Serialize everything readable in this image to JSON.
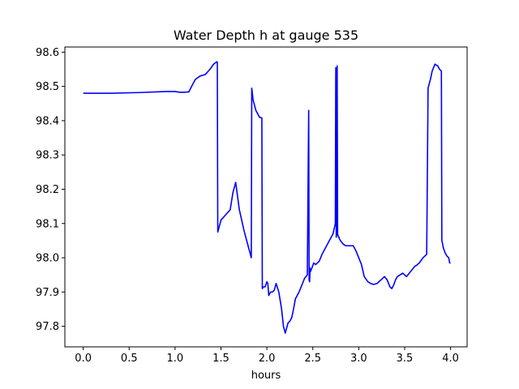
{
  "chart_data": {
    "type": "line",
    "title": "Water Depth h at gauge 535",
    "xlabel": "hours",
    "ylabel": "",
    "xlim": [
      -0.2,
      4.18
    ],
    "ylim": [
      97.74,
      98.615
    ],
    "xticks": [
      0.0,
      0.5,
      1.0,
      1.5,
      2.0,
      2.5,
      3.0,
      3.5,
      4.0
    ],
    "xtick_labels": [
      "0.0",
      "0.5",
      "1.0",
      "1.5",
      "2.0",
      "2.5",
      "3.0",
      "3.5",
      "4.0"
    ],
    "yticks": [
      97.8,
      97.9,
      98.0,
      98.1,
      98.2,
      98.3,
      98.4,
      98.5,
      98.6
    ],
    "ytick_labels": [
      "97.8",
      "97.9",
      "98.0",
      "98.1",
      "98.2",
      "98.3",
      "98.4",
      "98.5",
      "98.6"
    ],
    "grid": false,
    "series": [
      {
        "color": "#0000ff",
        "x": [
          0.0,
          0.3,
          0.6,
          0.9,
          1.0,
          1.05,
          1.1,
          1.15,
          1.18,
          1.22,
          1.27,
          1.33,
          1.38,
          1.42,
          1.455,
          1.46,
          1.465,
          1.48,
          1.5,
          1.55,
          1.6,
          1.63,
          1.66,
          1.68,
          1.7,
          1.75,
          1.8,
          1.83,
          1.835,
          1.85,
          1.88,
          1.92,
          1.945,
          1.95,
          1.96,
          1.98,
          2.0,
          2.01,
          2.02,
          2.04,
          2.06,
          2.08,
          2.1,
          2.13,
          2.16,
          2.18,
          2.2,
          2.23,
          2.25,
          2.27,
          2.29,
          2.31,
          2.33,
          2.35,
          2.38,
          2.41,
          2.44,
          2.455,
          2.46,
          2.465,
          2.47,
          2.475,
          2.49,
          2.51,
          2.53,
          2.55,
          2.57,
          2.6,
          2.64,
          2.68,
          2.72,
          2.745,
          2.75,
          2.755,
          2.76,
          2.765,
          2.77,
          2.775,
          2.78,
          2.785,
          2.79,
          2.8,
          2.83,
          2.86,
          2.9,
          2.94,
          2.97,
          3.0,
          3.03,
          3.06,
          3.1,
          3.13,
          3.16,
          3.2,
          3.24,
          3.28,
          3.31,
          3.34,
          3.36,
          3.38,
          3.4,
          3.42,
          3.45,
          3.48,
          3.5,
          3.52,
          3.55,
          3.58,
          3.61,
          3.63,
          3.66,
          3.7,
          3.74,
          3.755,
          3.76,
          3.78,
          3.8,
          3.83,
          3.86,
          3.88,
          3.9,
          3.905,
          3.91,
          3.92,
          3.94,
          3.96,
          3.98,
          3.99,
          4.0
        ],
        "values": [
          98.48,
          98.48,
          98.482,
          98.485,
          98.485,
          98.483,
          98.483,
          98.484,
          98.5,
          98.52,
          98.53,
          98.535,
          98.55,
          98.565,
          98.572,
          98.57,
          98.075,
          98.09,
          98.11,
          98.125,
          98.14,
          98.19,
          98.22,
          98.18,
          98.14,
          98.08,
          98.03,
          98.0,
          98.495,
          98.46,
          98.43,
          98.41,
          98.408,
          97.91,
          97.915,
          97.915,
          97.93,
          97.925,
          97.89,
          97.9,
          97.9,
          97.905,
          97.925,
          97.9,
          97.85,
          97.8,
          97.78,
          97.81,
          97.815,
          97.825,
          97.85,
          97.88,
          97.89,
          97.9,
          97.92,
          97.94,
          97.95,
          98.43,
          97.935,
          97.93,
          97.97,
          97.96,
          97.97,
          97.985,
          97.98,
          97.985,
          97.99,
          98.01,
          98.03,
          98.05,
          98.07,
          98.1,
          98.555,
          98.06,
          98.07,
          98.56,
          98.07,
          98.065,
          98.06,
          98.06,
          98.055,
          98.05,
          98.04,
          98.035,
          98.035,
          98.035,
          98.02,
          98.0,
          97.98,
          97.945,
          97.93,
          97.925,
          97.922,
          97.925,
          97.935,
          97.945,
          97.935,
          97.915,
          97.91,
          97.92,
          97.935,
          97.945,
          97.95,
          97.955,
          97.95,
          97.945,
          97.955,
          97.965,
          97.975,
          97.978,
          97.985,
          98.0,
          98.01,
          98.495,
          98.5,
          98.52,
          98.545,
          98.565,
          98.56,
          98.55,
          98.545,
          98.05,
          98.045,
          98.03,
          98.015,
          98.005,
          98.0,
          97.985,
          97.985
        ]
      }
    ]
  }
}
